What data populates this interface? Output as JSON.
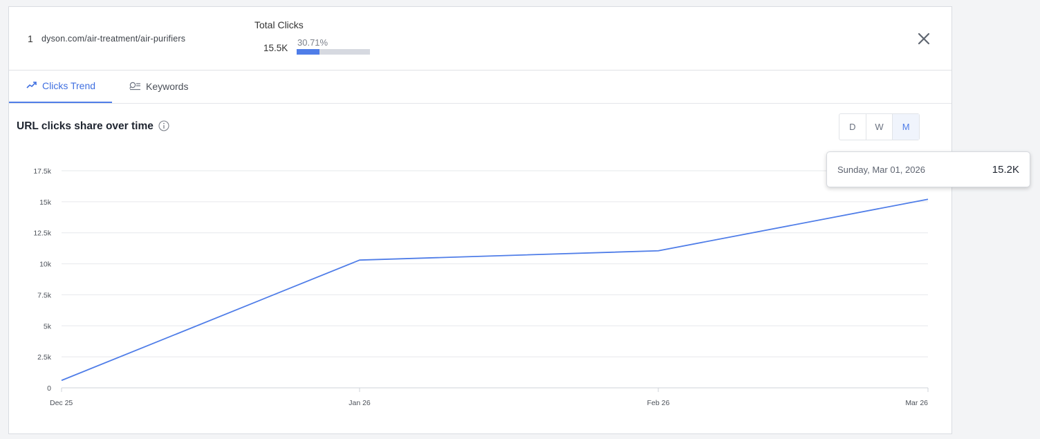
{
  "header": {
    "rank": "1",
    "url": "dyson.com/air-treatment/air-purifiers",
    "total_clicks_label": "Total Clicks",
    "total_clicks_value": "15.5K",
    "share_percent": "30.71%",
    "share_fraction": 0.3071
  },
  "tabs": [
    {
      "label": "Clicks Trend",
      "icon": "trend-line-icon",
      "active": true
    },
    {
      "label": "Keywords",
      "icon": "keyword-search-icon",
      "active": false
    }
  ],
  "chart_section": {
    "title": "URL clicks share over time",
    "granularity_options": [
      "D",
      "W",
      "M"
    ],
    "selected_granularity": "M"
  },
  "tooltip": {
    "date": "Sunday, Mar 01, 2026",
    "value": "15.2K"
  },
  "colors": {
    "accent": "#4f7de8",
    "series_line": "#4f7de8",
    "grid": "#e6e8eb"
  },
  "chart_data": {
    "type": "line",
    "x": [
      "Dec 25",
      "Jan 26",
      "Feb 26",
      "Mar 26"
    ],
    "series": [
      {
        "values": [
          600,
          10300,
          11050,
          15200
        ]
      }
    ],
    "y_ticks": [
      0,
      2500,
      5000,
      7500,
      10000,
      12500,
      15000,
      17500
    ],
    "y_tick_labels": [
      "0",
      "2.5k",
      "5k",
      "7.5k",
      "10k",
      "12.5k",
      "15k",
      "17.5k"
    ],
    "ylim": [
      0,
      17500
    ],
    "grid": true,
    "xlabel": "",
    "ylabel": ""
  }
}
